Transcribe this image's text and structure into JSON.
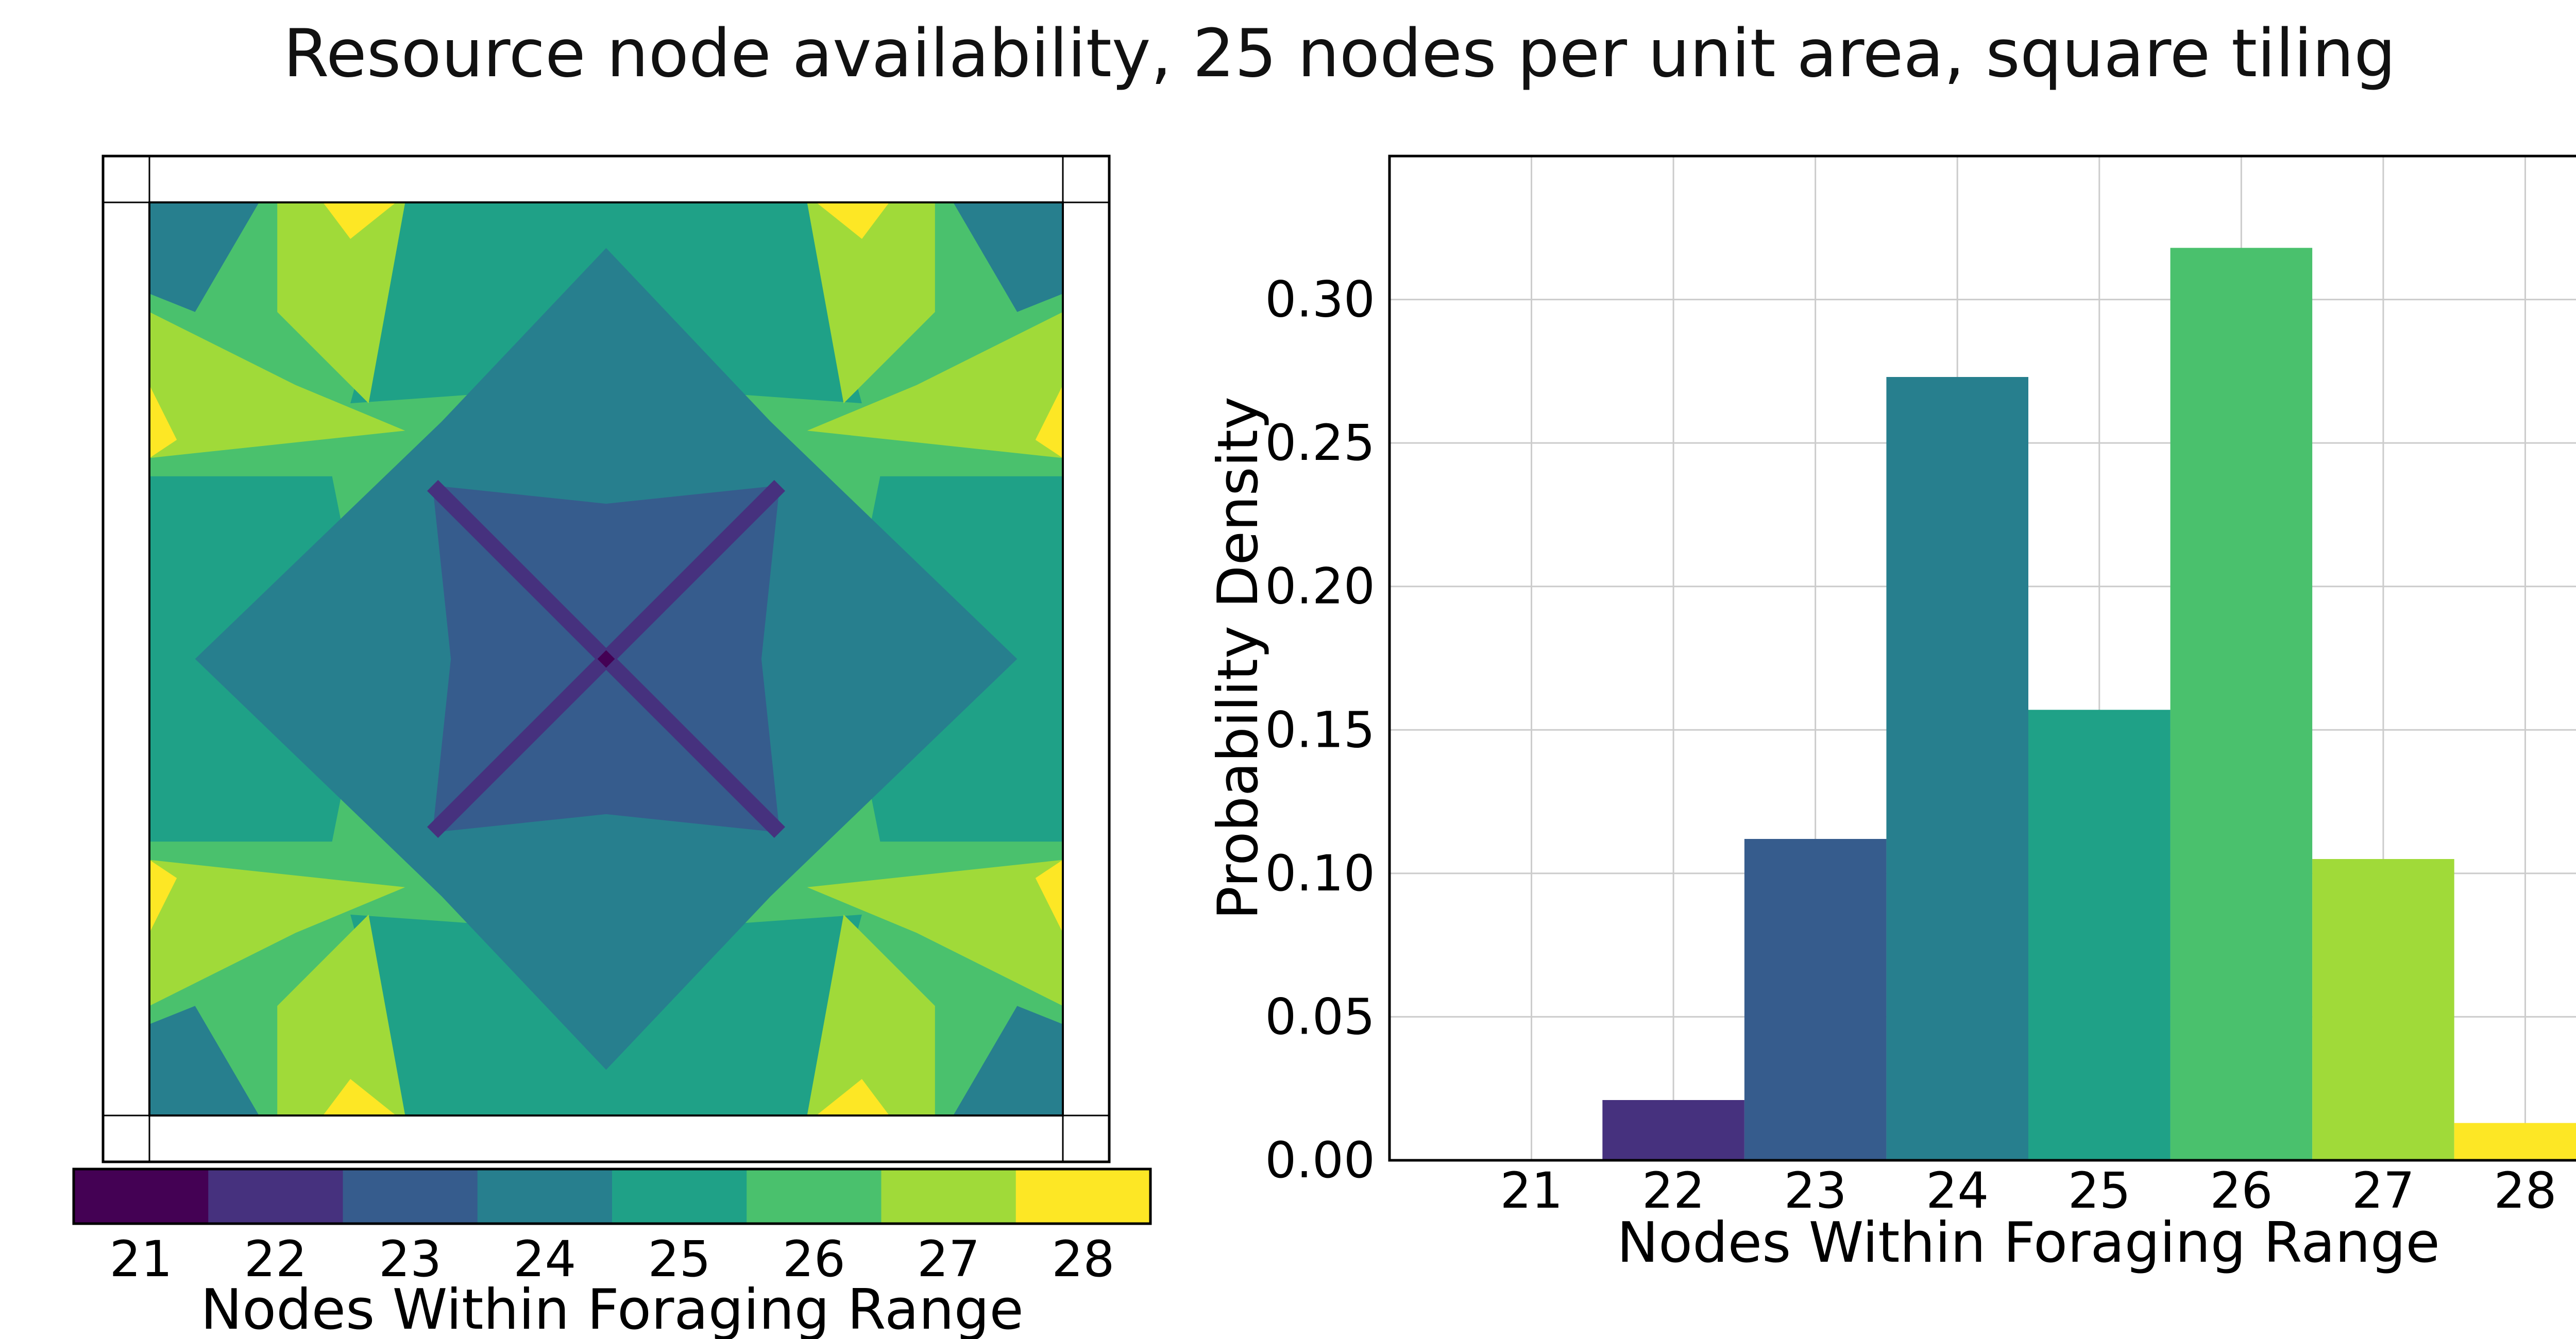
{
  "title": "Resource node availability, 25 nodes per unit area, square tiling",
  "colors": {
    "21": "#440154",
    "22": "#46317e",
    "23": "#365c8d",
    "24": "#277f8e",
    "25": "#1fa187",
    "26": "#4ac16d",
    "27": "#a0da39",
    "28": "#fde725"
  },
  "chart_data": [
    {
      "type": "heatmap",
      "description": "Square tiling map, colour = nodes within foraging range",
      "colorbar": {
        "levels": [
          21,
          22,
          23,
          24,
          25,
          26,
          27,
          28
        ],
        "tick_labels": [
          "21",
          "22",
          "23",
          "24",
          "25",
          "26",
          "27",
          "28"
        ],
        "label": "Nodes Within Foraging Range"
      }
    },
    {
      "type": "bar",
      "categories": [
        "21",
        "22",
        "23",
        "24",
        "25",
        "26",
        "27",
        "28"
      ],
      "values": [
        0.0,
        0.021,
        0.112,
        0.273,
        0.157,
        0.318,
        0.105,
        0.013
      ],
      "xlabel": "Nodes Within Foraging Range",
      "ylabel": "Probability Density",
      "ylim": [
        0,
        0.35
      ],
      "yticks": [
        0.0,
        0.05,
        0.1,
        0.15,
        0.2,
        0.25,
        0.3
      ],
      "ytick_labels": [
        "0.00",
        "0.05",
        "0.10",
        "0.15",
        "0.20",
        "0.25",
        "0.30"
      ],
      "grid": true
    }
  ]
}
